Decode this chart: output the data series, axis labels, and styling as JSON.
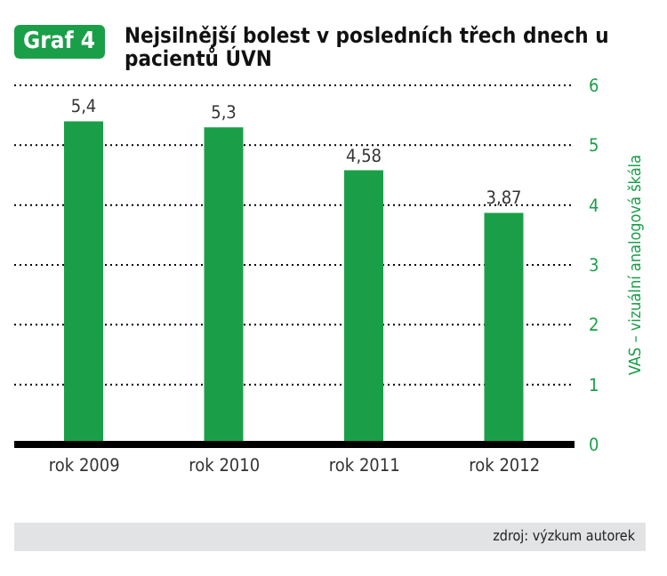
{
  "chart_data": {
    "type": "bar",
    "title": "Nejsilnější bolest v posledních třech dnech u pacientů ÚVN",
    "ylabel": "VAS – vizuální analogová škála",
    "annotations": [
      "Graf 4",
      "zdroj: výzkum autorek"
    ],
    "categories": [
      "rok 2009",
      "rok 2010",
      "rok 2011",
      "rok 2012"
    ],
    "values": [
      5.4,
      5.3,
      4.58,
      3.87
    ],
    "value_labels": [
      "5,4",
      "5,3",
      "4,58",
      "3,87"
    ],
    "color": "#1a9f48",
    "ylim": [
      0,
      6
    ],
    "yticks": [
      0,
      1,
      2,
      3,
      4,
      5,
      6
    ],
    "grid": "y"
  }
}
